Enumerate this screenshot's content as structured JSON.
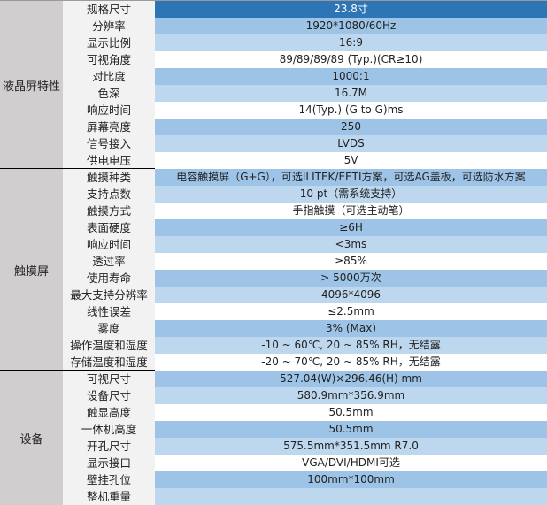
{
  "colors": {
    "selected": "#2e75b6",
    "band_mid": "#9dc3e6",
    "band_light": "#bdd7ee",
    "band_white": "#ffffff",
    "label_bg": "#f2f2f2",
    "group_bg": "#d0cece"
  },
  "groups": [
    {
      "name": "液晶屏特性",
      "rows": [
        {
          "label": "规格尺寸",
          "value": "23.8寸"
        },
        {
          "label": "分辨率",
          "value": "1920*1080/60Hz"
        },
        {
          "label": "显示比例",
          "value": "16:9"
        },
        {
          "label": "可视角度",
          "value": "89/89/89/89 (Typ.)(CR≥10)"
        },
        {
          "label": "对比度",
          "value": "1000:1"
        },
        {
          "label": "色深",
          "value": "16.7M"
        },
        {
          "label": "响应时间",
          "value": "14(Typ.) (G to G)ms"
        },
        {
          "label": "屏幕亮度",
          "value": "250"
        },
        {
          "label": "信号接入",
          "value": "LVDS"
        },
        {
          "label": "供电电压",
          "value": "5V"
        }
      ]
    },
    {
      "name": "触摸屏",
      "rows": [
        {
          "label": "触摸种类",
          "value": "电容触摸屏（G+G），可选ILITEK/EETI方案，可选AG盖板，可选防水方案"
        },
        {
          "label": "支持点数",
          "value": "10 pt（需系统支持）"
        },
        {
          "label": "触摸方式",
          "value": "手指触摸（可选主动笔）"
        },
        {
          "label": "表面硬度",
          "value": "≥6H"
        },
        {
          "label": "响应时间",
          "value": "<3ms"
        },
        {
          "label": "透过率",
          "value": "≥85%"
        },
        {
          "label": "使用寿命",
          "value": "> 5000万次"
        },
        {
          "label": "最大支持分辨率",
          "value": "4096*4096"
        },
        {
          "label": "线性误差",
          "value": "≤2.5mm"
        },
        {
          "label": "雾度",
          "value": "3% (Max)"
        },
        {
          "label": "操作温度和湿度",
          "value": "-10 ~ 60℃, 20 ~ 85% RH，无结露"
        },
        {
          "label": "存储温度和湿度",
          "value": "-20 ~ 70℃, 20 ~ 85% RH，无结露"
        }
      ]
    },
    {
      "name": "设备",
      "rows": [
        {
          "label": "可视尺寸",
          "value": "527.04(W)×296.46(H) mm"
        },
        {
          "label": "设备尺寸",
          "value": "580.9mm*356.9mm"
        },
        {
          "label": "触显高度",
          "value": "50.5mm"
        },
        {
          "label": "一体机高度",
          "value": "50.5mm"
        },
        {
          "label": "开孔尺寸",
          "value": "575.5mm*351.5mm R7.0"
        },
        {
          "label": "显示接口",
          "value": "VGA/DVI/HDMI可选"
        },
        {
          "label": "壁挂孔位",
          "value": "100mm*100mm"
        },
        {
          "label": "整机重量",
          "value": ""
        }
      ]
    }
  ]
}
